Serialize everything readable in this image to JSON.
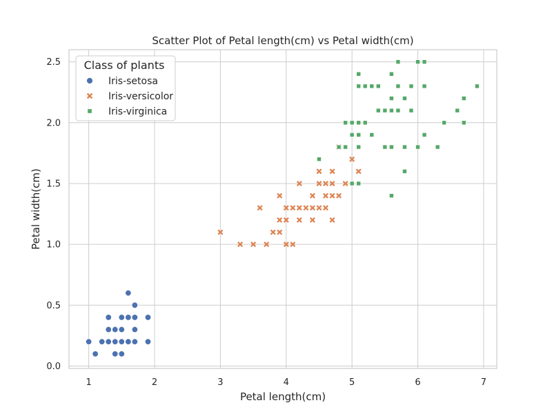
{
  "chart_data": {
    "type": "scatter",
    "title": "Scatter Plot of Petal length(cm) vs Petal width(cm)",
    "xlabel": "Petal length(cm)",
    "ylabel": "Petal width(cm)",
    "xlim": [
      0.7,
      7.2
    ],
    "ylim": [
      -0.02,
      2.6
    ],
    "xticks": [
      "1",
      "2",
      "3",
      "4",
      "5",
      "6",
      "7"
    ],
    "yticks": [
      "0.0",
      "0.5",
      "1.0",
      "1.5",
      "2.0",
      "2.5"
    ],
    "grid": true,
    "legend": {
      "title": "Class of plants",
      "position": "top-left"
    },
    "series": [
      {
        "name": "Iris-setosa",
        "marker": "circle",
        "color": "#4c72b0",
        "points": [
          [
            1.0,
            0.2
          ],
          [
            1.1,
            0.1
          ],
          [
            1.2,
            0.2
          ],
          [
            1.3,
            0.2
          ],
          [
            1.3,
            0.3
          ],
          [
            1.3,
            0.4
          ],
          [
            1.4,
            0.1
          ],
          [
            1.4,
            0.2
          ],
          [
            1.4,
            0.3
          ],
          [
            1.5,
            0.1
          ],
          [
            1.5,
            0.2
          ],
          [
            1.5,
            0.3
          ],
          [
            1.5,
            0.4
          ],
          [
            1.6,
            0.2
          ],
          [
            1.6,
            0.4
          ],
          [
            1.6,
            0.6
          ],
          [
            1.7,
            0.2
          ],
          [
            1.7,
            0.3
          ],
          [
            1.7,
            0.4
          ],
          [
            1.7,
            0.5
          ],
          [
            1.9,
            0.2
          ],
          [
            1.9,
            0.4
          ]
        ]
      },
      {
        "name": "Iris-versicolor",
        "marker": "x",
        "color": "#dd8452",
        "points": [
          [
            3.0,
            1.1
          ],
          [
            3.3,
            1.0
          ],
          [
            3.5,
            1.0
          ],
          [
            3.6,
            1.3
          ],
          [
            3.7,
            1.0
          ],
          [
            3.8,
            1.1
          ],
          [
            3.9,
            1.1
          ],
          [
            3.9,
            1.2
          ],
          [
            3.9,
            1.4
          ],
          [
            4.0,
            1.0
          ],
          [
            4.0,
            1.2
          ],
          [
            4.0,
            1.3
          ],
          [
            4.1,
            1.0
          ],
          [
            4.1,
            1.3
          ],
          [
            4.2,
            1.2
          ],
          [
            4.2,
            1.3
          ],
          [
            4.2,
            1.5
          ],
          [
            4.3,
            1.3
          ],
          [
            4.4,
            1.2
          ],
          [
            4.4,
            1.3
          ],
          [
            4.4,
            1.4
          ],
          [
            4.5,
            1.3
          ],
          [
            4.5,
            1.5
          ],
          [
            4.5,
            1.6
          ],
          [
            4.6,
            1.3
          ],
          [
            4.6,
            1.4
          ],
          [
            4.6,
            1.5
          ],
          [
            4.7,
            1.2
          ],
          [
            4.7,
            1.4
          ],
          [
            4.7,
            1.5
          ],
          [
            4.7,
            1.6
          ],
          [
            4.8,
            1.4
          ],
          [
            4.8,
            1.8
          ],
          [
            4.9,
            1.5
          ],
          [
            5.0,
            1.7
          ],
          [
            5.1,
            1.6
          ]
        ]
      },
      {
        "name": "Iris-virginica",
        "marker": "square",
        "color": "#55a868",
        "points": [
          [
            4.5,
            1.7
          ],
          [
            4.8,
            1.8
          ],
          [
            4.9,
            1.8
          ],
          [
            4.9,
            2.0
          ],
          [
            5.0,
            1.5
          ],
          [
            5.0,
            1.9
          ],
          [
            5.0,
            2.0
          ],
          [
            5.1,
            1.5
          ],
          [
            5.1,
            1.8
          ],
          [
            5.1,
            1.9
          ],
          [
            5.1,
            2.0
          ],
          [
            5.1,
            2.3
          ],
          [
            5.1,
            2.4
          ],
          [
            5.2,
            2.0
          ],
          [
            5.2,
            2.3
          ],
          [
            5.3,
            1.9
          ],
          [
            5.3,
            2.3
          ],
          [
            5.4,
            2.1
          ],
          [
            5.4,
            2.3
          ],
          [
            5.5,
            1.8
          ],
          [
            5.5,
            2.1
          ],
          [
            5.6,
            1.4
          ],
          [
            5.6,
            1.8
          ],
          [
            5.6,
            2.1
          ],
          [
            5.6,
            2.2
          ],
          [
            5.6,
            2.4
          ],
          [
            5.7,
            2.1
          ],
          [
            5.7,
            2.3
          ],
          [
            5.7,
            2.5
          ],
          [
            5.8,
            1.6
          ],
          [
            5.8,
            1.8
          ],
          [
            5.8,
            2.2
          ],
          [
            5.9,
            2.1
          ],
          [
            5.9,
            2.3
          ],
          [
            6.0,
            1.8
          ],
          [
            6.0,
            2.5
          ],
          [
            6.1,
            1.9
          ],
          [
            6.1,
            2.3
          ],
          [
            6.1,
            2.5
          ],
          [
            6.3,
            1.8
          ],
          [
            6.4,
            2.0
          ],
          [
            6.6,
            2.1
          ],
          [
            6.7,
            2.0
          ],
          [
            6.7,
            2.2
          ],
          [
            6.9,
            2.3
          ]
        ]
      }
    ]
  }
}
